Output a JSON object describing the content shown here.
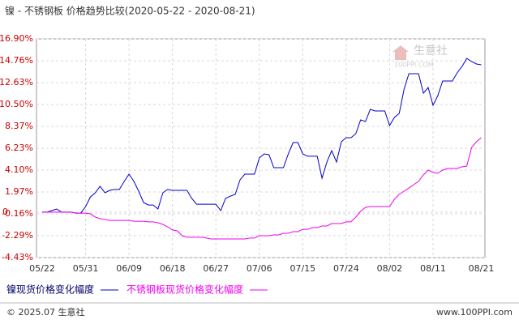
{
  "chart_data": {
    "type": "line",
    "title": "镍 - 不锈钢板 价格趋势比较(2020-05-22 - 2020-08-21)",
    "categories": [
      "05/22",
      null,
      null,
      null,
      null,
      null,
      null,
      null,
      null,
      "05/31",
      null,
      null,
      null,
      null,
      null,
      null,
      null,
      null,
      "06/09",
      null,
      null,
      null,
      null,
      null,
      null,
      null,
      null,
      "06/18",
      null,
      null,
      null,
      null,
      null,
      null,
      null,
      null,
      "06/27",
      null,
      null,
      null,
      null,
      null,
      null,
      null,
      null,
      "07/06",
      null,
      null,
      null,
      null,
      null,
      null,
      null,
      null,
      "07/15",
      null,
      null,
      null,
      null,
      null,
      null,
      null,
      null,
      "07/24",
      null,
      null,
      null,
      null,
      null,
      null,
      null,
      null,
      "08/02",
      null,
      null,
      null,
      null,
      null,
      null,
      null,
      null,
      "08/11",
      null,
      null,
      null,
      null,
      null,
      null,
      null,
      null,
      null,
      "08/21"
    ],
    "series": [
      {
        "name": "镍现货价格变化幅度",
        "color": "#0000cc",
        "values": [
          0,
          0,
          0.15,
          0.31,
          0,
          0,
          0,
          -0.09,
          -0.09,
          0.55,
          1.49,
          1.89,
          2.52,
          1.89,
          2.13,
          2.21,
          2.21,
          3.0,
          3.71,
          3.0,
          2.05,
          0.94,
          0.7,
          0.7,
          0.31,
          1.89,
          2.21,
          2.13,
          2.13,
          2.13,
          2.13,
          1.34,
          0.78,
          0.78,
          0.78,
          0.78,
          0.78,
          0.15,
          1.34,
          1.57,
          1.73,
          3.15,
          3.71,
          3.71,
          3.71,
          5.29,
          5.68,
          5.6,
          4.34,
          4.34,
          4.34,
          5.68,
          6.79,
          6.79,
          5.68,
          5.45,
          5.45,
          5.45,
          3.31,
          4.89,
          6.0,
          4.89,
          6.87,
          7.26,
          7.26,
          7.66,
          9.0,
          8.84,
          10.03,
          9.87,
          9.87,
          9.87,
          8.45,
          9.24,
          9.63,
          12.0,
          13.5,
          13.5,
          13.5,
          11.61,
          12.16,
          10.42,
          11.37,
          12.79,
          12.79,
          12.79,
          13.58,
          14.21,
          15.0,
          14.69,
          14.45,
          14.37
        ]
      },
      {
        "name": "不锈钢板现货价格变化幅度",
        "color": "#ee00ee",
        "values": [
          0,
          0,
          0,
          0,
          0,
          0,
          0,
          -0.09,
          -0.09,
          -0.09,
          -0.16,
          -0.48,
          -0.64,
          -0.72,
          -0.8,
          -0.8,
          -0.8,
          -0.8,
          -0.8,
          -0.88,
          -0.88,
          -0.88,
          -0.95,
          -0.95,
          -1.03,
          -1.19,
          -1.43,
          -1.74,
          -1.82,
          -2.3,
          -2.45,
          -2.45,
          -2.45,
          -2.45,
          -2.53,
          -2.61,
          -2.61,
          -2.61,
          -2.61,
          -2.61,
          -2.61,
          -2.61,
          -2.61,
          -2.53,
          -2.53,
          -2.3,
          -2.3,
          -2.3,
          -2.22,
          -2.22,
          -2.06,
          -2.06,
          -1.9,
          -1.9,
          -1.67,
          -1.67,
          -1.51,
          -1.51,
          -1.35,
          -1.35,
          -1.11,
          -1.11,
          -1.11,
          -0.95,
          -0.95,
          -0.48,
          0.08,
          0.47,
          0.55,
          0.55,
          0.55,
          0.55,
          0.55,
          1.26,
          1.73,
          2.05,
          2.36,
          2.68,
          3.0,
          3.63,
          4.1,
          3.87,
          3.79,
          4.1,
          4.26,
          4.26,
          4.26,
          4.42,
          4.5,
          6.31,
          6.87,
          7.26
        ]
      }
    ],
    "ylim": [
      -4.43,
      16.9
    ],
    "yticks": [
      {
        "value": 16.9,
        "label": "16.90%"
      },
      {
        "value": 14.76,
        "label": "14.76%"
      },
      {
        "value": 12.63,
        "label": "12.63%"
      },
      {
        "value": 10.5,
        "label": "10.50%"
      },
      {
        "value": 8.37,
        "label": "8.37%"
      },
      {
        "value": 6.23,
        "label": "6.23%"
      },
      {
        "value": 4.1,
        "label": "4.10%"
      },
      {
        "value": 1.97,
        "label": "1.97%"
      },
      0,
      {
        "value": -0.16,
        "label": "-0.16%"
      },
      {
        "value": -2.29,
        "label": "-2.29%"
      },
      {
        "value": -4.43,
        "label": "-4.43%"
      }
    ],
    "grid": true,
    "watermark": {
      "name": "生意社",
      "url": "100PPI.COM"
    }
  },
  "footer": {
    "copyright": "© 2025.07 生意社",
    "site": "www.100PPI.com"
  }
}
